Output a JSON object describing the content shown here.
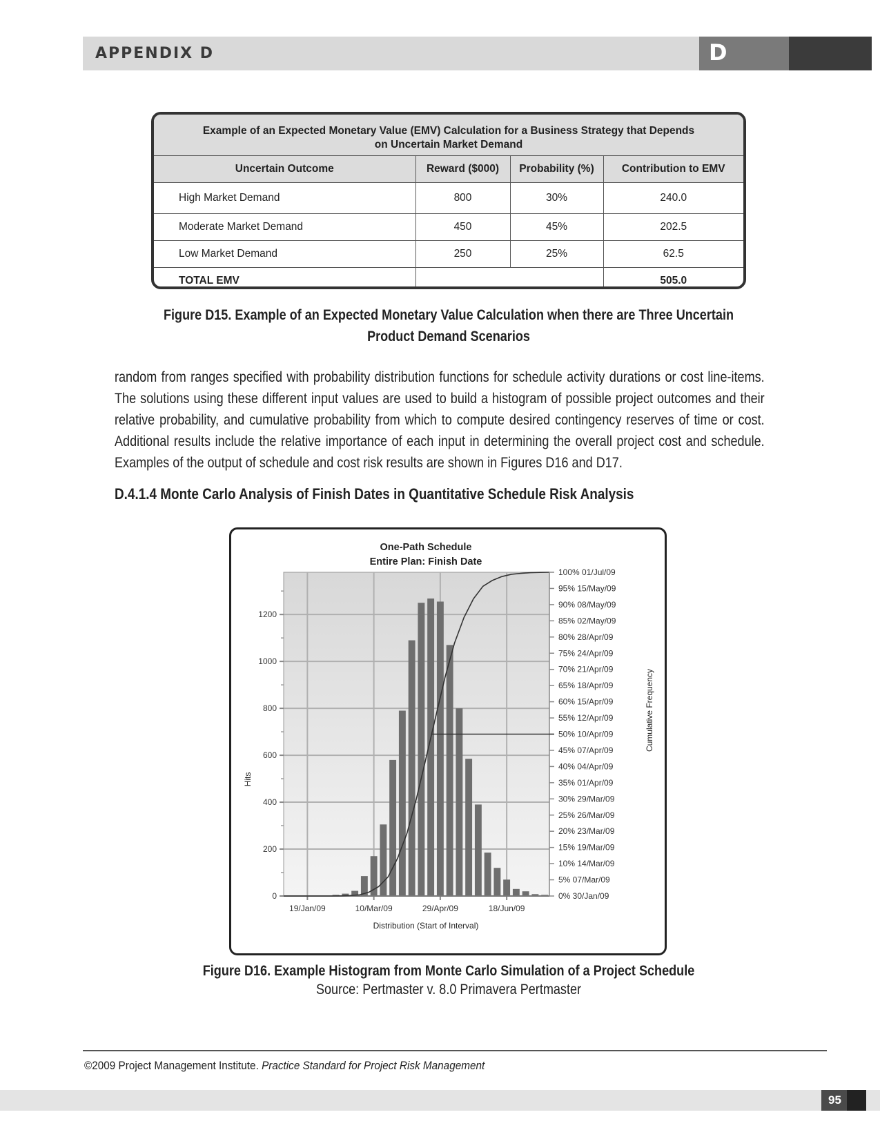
{
  "header": {
    "title": "APPENDIX D",
    "letter": "D"
  },
  "emv_table": {
    "caption_line1": "Example of an Expected Monetary Value (EMV) Calculation for a Business Strategy that Depends",
    "caption_line2": "on Uncertain Market Demand",
    "columns": [
      "Uncertain Outcome",
      "Reward  ($000)",
      "Probability  (%)",
      "Contribution to EMV"
    ],
    "rows": [
      {
        "outcome": "High Market Demand",
        "reward": "800",
        "probability": "30%",
        "contribution": "240.0"
      },
      {
        "outcome": "Moderate Market Demand",
        "reward": "450",
        "probability": "45%",
        "contribution": "202.5"
      },
      {
        "outcome": "Low Market Demand",
        "reward": "250",
        "probability": "25%",
        "contribution": "62.5"
      }
    ],
    "total_label": "TOTAL EMV",
    "total_value": "505.0"
  },
  "figure_d15": {
    "line1": "Figure D15. Example of an Expected Monetary Value Calculation when there are Three Uncertain",
    "line2": "Product Demand Scenarios"
  },
  "body_paragraph": "random from ranges specified with probability distribution functions for schedule activity durations or cost line-items. The solutions using these different input values are used to build a histogram of possible project outcomes and their relative probability, and cumulative probability from which to compute desired contingency reserves of time or cost. Additional results include the relative importance of each input in determining the overall project cost and schedule. Examples of the output of schedule and cost risk results are shown in Figures D16 and D17.",
  "section_heading": "D.4.1.4  Monte Carlo Analysis of Finish Dates in Quantitative Schedule Risk Analysis",
  "chart_data": {
    "type": "bar",
    "title": "One-Path Schedule",
    "subtitle": "Entire Plan: Finish Date",
    "xlabel": "Distribution (Start of Interval)",
    "ylabel": "Hits",
    "y2label": "Cumulative Frequency",
    "ylim": [
      0,
      1380
    ],
    "yticks": [
      0,
      200,
      400,
      600,
      800,
      1000,
      1200
    ],
    "x_tick_labels": [
      "19/Jan/09",
      "10/Mar/09",
      "29/Apr/09",
      "18/Jun/09"
    ],
    "grid": true,
    "bar_color": "#6e6e6e",
    "plot_bg": "#e6e6e6",
    "values": [
      0,
      0,
      0,
      0,
      0,
      5,
      10,
      22,
      85,
      170,
      305,
      580,
      790,
      1090,
      1250,
      1268,
      1255,
      1070,
      800,
      585,
      390,
      185,
      120,
      70,
      30,
      20,
      8,
      5
    ],
    "cumulative_series": {
      "name": "Cumulative Frequency",
      "median_marker": "50% 10/Apr/09"
    },
    "cumulative_labels": [
      "100% 01/Jul/09",
      "95% 15/May/09",
      "90% 08/May/09",
      "85% 02/May/09",
      "80% 28/Apr/09",
      "75% 24/Apr/09",
      "70% 21/Apr/09",
      "65% 18/Apr/09",
      "60% 15/Apr/09",
      "55% 12/Apr/09",
      "50% 10/Apr/09",
      "45% 07/Apr/09",
      "40% 04/Apr/09",
      "35% 01/Apr/09",
      "30% 29/Mar/09",
      "25% 26/Mar/09",
      "20% 23/Mar/09",
      "15% 19/Mar/09",
      "10% 14/Mar/09",
      "5% 07/Mar/09",
      "0% 30/Jan/09"
    ]
  },
  "figure_d16": {
    "caption": "Figure D16. Example Histogram from Monte Carlo Simulation of a Project Schedule",
    "source": "Source: Pertmaster v. 8.0 Primavera Pertmaster"
  },
  "footer": {
    "copyright": "©2009 Project Management Institute. ",
    "book_title": "Practice Standard for Project Risk Management",
    "page_number": "95"
  }
}
